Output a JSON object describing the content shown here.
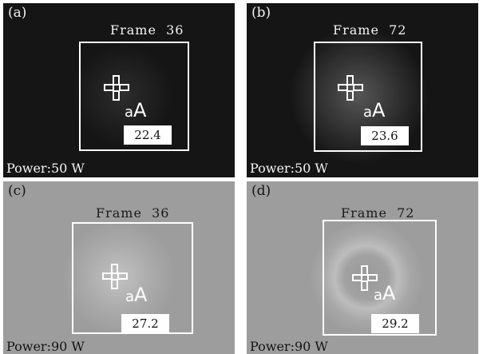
{
  "panels": [
    {
      "label": "(a)",
      "frame": "Frame  36",
      "reading": "22.4",
      "power": "Power:50 W",
      "glow": 0.05
    },
    {
      "label": "(b)",
      "frame": "Frame  72",
      "reading": "23.6",
      "power": "Power:50 W",
      "glow": 0.35
    },
    {
      "label": "(c)",
      "frame": "Frame  36",
      "reading": "27.2",
      "power": "Power:90 W",
      "glow": 0.45
    },
    {
      "label": "(d)",
      "frame": "Frame  72",
      "reading": "29.2",
      "power": "Power:90 W",
      "glow": 0.8
    }
  ],
  "icons": [
    "crosshair-icon",
    "aa-marker-icon"
  ],
  "colors": {
    "dark_background": "#151515",
    "light_background": "#9d9d9d",
    "roi": "#ffffff"
  }
}
